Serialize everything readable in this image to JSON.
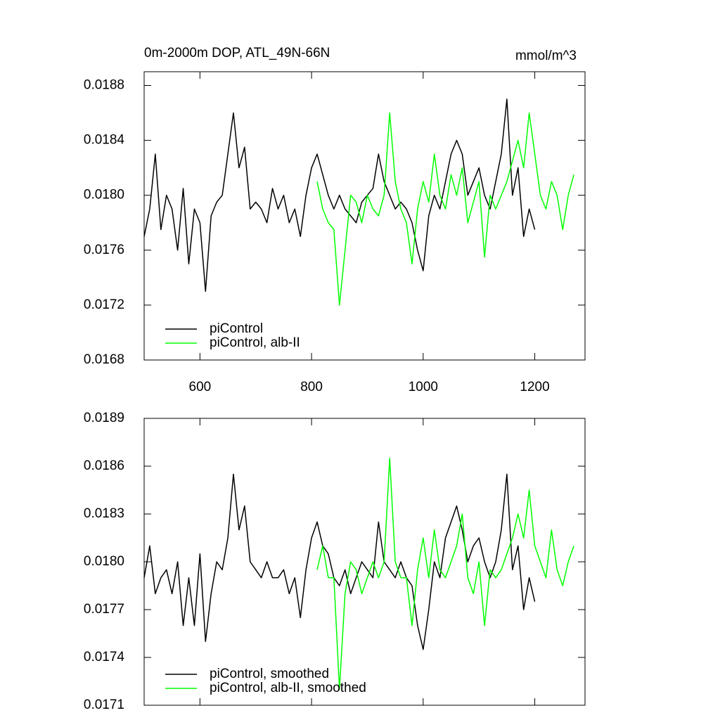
{
  "chart_data": [
    {
      "type": "line",
      "title": "0m-2000m DOP, ATL_49N-66N",
      "units": "mmol/m^3",
      "xlim": [
        500,
        1290
      ],
      "xticks": [
        600,
        800,
        1000,
        1200
      ],
      "xticklabels": true,
      "ylim": [
        0.0168,
        0.0189
      ],
      "yticks": [
        0.0168,
        0.0172,
        0.0176,
        {
          "value": 0.018,
          "label": "0.0180"
        },
        0.0184,
        0.0188
      ],
      "grid": false,
      "legend": "lower left",
      "series": [
        {
          "name": "piControl",
          "color": "#000000",
          "x": [
            500,
            510,
            520,
            530,
            540,
            550,
            560,
            570,
            580,
            590,
            600,
            610,
            620,
            630,
            640,
            650,
            660,
            670,
            680,
            690,
            700,
            710,
            720,
            730,
            740,
            750,
            760,
            770,
            780,
            790,
            800,
            810,
            820,
            830,
            840,
            850,
            860,
            870,
            880,
            890,
            900,
            910,
            920,
            930,
            940,
            950,
            960,
            970,
            980,
            990,
            1000,
            1010,
            1020,
            1030,
            1040,
            1050,
            1060,
            1070,
            1080,
            1090,
            1100,
            1110,
            1120,
            1130,
            1140,
            1150,
            1160,
            1170,
            1180,
            1190,
            1200
          ],
          "values": [
            0.0177,
            0.0179,
            0.0183,
            0.01775,
            0.018,
            0.0179,
            0.0176,
            0.01805,
            0.0175,
            0.0179,
            0.0178,
            0.0173,
            0.01785,
            0.01795,
            0.018,
            0.0183,
            0.0186,
            0.0182,
            0.01835,
            0.0179,
            0.01795,
            0.0179,
            0.0178,
            0.01805,
            0.0179,
            0.018,
            0.0178,
            0.0179,
            0.0177,
            0.018,
            0.0182,
            0.0183,
            0.01815,
            0.018,
            0.0179,
            0.018,
            0.0179,
            0.01785,
            0.0178,
            0.01795,
            0.018,
            0.01805,
            0.0183,
            0.0181,
            0.018,
            0.0179,
            0.01795,
            0.0179,
            0.0178,
            0.0176,
            0.01745,
            0.01785,
            0.018,
            0.0179,
            0.0181,
            0.0183,
            0.0184,
            0.0183,
            0.018,
            0.0181,
            0.0182,
            0.018,
            0.0179,
            0.0181,
            0.0183,
            0.0187,
            0.018,
            0.0182,
            0.0177,
            0.0179,
            0.01775
          ]
        },
        {
          "name": "piControl, alb-II",
          "color": "#00ff00",
          "x": [
            810,
            820,
            830,
            840,
            850,
            860,
            870,
            880,
            890,
            900,
            910,
            920,
            930,
            940,
            950,
            960,
            970,
            980,
            990,
            1000,
            1010,
            1020,
            1030,
            1040,
            1050,
            1060,
            1070,
            1080,
            1090,
            1100,
            1110,
            1120,
            1130,
            1140,
            1150,
            1160,
            1170,
            1180,
            1190,
            1200,
            1210,
            1220,
            1230,
            1240,
            1250,
            1260,
            1270
          ],
          "values": [
            0.0181,
            0.0179,
            0.0178,
            0.01775,
            0.0172,
            0.0176,
            0.018,
            0.01795,
            0.0178,
            0.018,
            0.0179,
            0.01785,
            0.018,
            0.0186,
            0.0181,
            0.0179,
            0.0178,
            0.0175,
            0.0179,
            0.0181,
            0.01795,
            0.0183,
            0.018,
            0.0179,
            0.01815,
            0.018,
            0.0182,
            0.0178,
            0.01795,
            0.0181,
            0.01755,
            0.018,
            0.0179,
            0.018,
            0.0181,
            0.01825,
            0.0184,
            0.0182,
            0.0186,
            0.0183,
            0.018,
            0.0179,
            0.0181,
            0.018,
            0.01775,
            0.018,
            0.01815
          ]
        }
      ]
    },
    {
      "type": "line",
      "xlim": [
        500,
        1290
      ],
      "xticks": [
        600,
        800,
        1000,
        1200
      ],
      "xticklabels": false,
      "ylim": [
        0.0171,
        0.0189
      ],
      "yticks": [
        0.0171,
        0.0174,
        0.0177,
        {
          "value": 0.018,
          "label": "0.0180"
        },
        0.0183,
        0.0186,
        0.0189
      ],
      "grid": false,
      "legend": "lower left",
      "series": [
        {
          "name": "piControl, smoothed",
          "color": "#000000",
          "x": [
            500,
            510,
            520,
            530,
            540,
            550,
            560,
            570,
            580,
            590,
            600,
            610,
            620,
            630,
            640,
            650,
            660,
            670,
            680,
            690,
            700,
            710,
            720,
            730,
            740,
            750,
            760,
            770,
            780,
            790,
            800,
            810,
            820,
            830,
            840,
            850,
            860,
            870,
            880,
            890,
            900,
            910,
            920,
            930,
            940,
            950,
            960,
            970,
            980,
            990,
            1000,
            1010,
            1020,
            1030,
            1040,
            1050,
            1060,
            1070,
            1080,
            1090,
            1100,
            1110,
            1120,
            1130,
            1140,
            1150,
            1160,
            1170,
            1180,
            1190,
            1200
          ],
          "values": [
            0.0179,
            0.0181,
            0.0178,
            0.0179,
            0.01795,
            0.0178,
            0.018,
            0.0176,
            0.0179,
            0.0176,
            0.01805,
            0.0175,
            0.0178,
            0.018,
            0.01795,
            0.01815,
            0.01855,
            0.0182,
            0.01835,
            0.018,
            0.01795,
            0.0179,
            0.018,
            0.0179,
            0.0179,
            0.01795,
            0.0178,
            0.0179,
            0.01765,
            0.01795,
            0.01815,
            0.01825,
            0.0181,
            0.01805,
            0.0179,
            0.01785,
            0.01795,
            0.0178,
            0.0179,
            0.018,
            0.01795,
            0.0179,
            0.01825,
            0.018,
            0.01795,
            0.0179,
            0.018,
            0.0179,
            0.01785,
            0.0176,
            0.01745,
            0.0177,
            0.018,
            0.0179,
            0.01815,
            0.01825,
            0.01835,
            0.0182,
            0.018,
            0.0181,
            0.01815,
            0.018,
            0.0179,
            0.018,
            0.0182,
            0.01855,
            0.01795,
            0.0181,
            0.0177,
            0.0179,
            0.01775
          ]
        },
        {
          "name": "piControl, alb-II, smoothed",
          "color": "#00ff00",
          "x": [
            810,
            820,
            830,
            840,
            850,
            860,
            870,
            880,
            890,
            900,
            910,
            920,
            930,
            940,
            950,
            960,
            970,
            980,
            990,
            1000,
            1010,
            1020,
            1030,
            1040,
            1050,
            1060,
            1070,
            1080,
            1090,
            1100,
            1110,
            1120,
            1130,
            1140,
            1150,
            1160,
            1170,
            1180,
            1190,
            1200,
            1210,
            1220,
            1230,
            1240,
            1250,
            1260,
            1270
          ],
          "values": [
            0.01795,
            0.0181,
            0.0179,
            0.0179,
            0.0172,
            0.0178,
            0.018,
            0.01795,
            0.0178,
            0.0179,
            0.018,
            0.0179,
            0.018,
            0.01865,
            0.018,
            0.0179,
            0.0179,
            0.0176,
            0.01795,
            0.01815,
            0.0179,
            0.0182,
            0.01795,
            0.0179,
            0.018,
            0.0181,
            0.0183,
            0.0179,
            0.0178,
            0.018,
            0.0176,
            0.01795,
            0.0179,
            0.01795,
            0.01805,
            0.01815,
            0.0183,
            0.01815,
            0.01845,
            0.0181,
            0.018,
            0.0179,
            0.0182,
            0.01795,
            0.01785,
            0.018,
            0.0181
          ]
        }
      ]
    }
  ]
}
